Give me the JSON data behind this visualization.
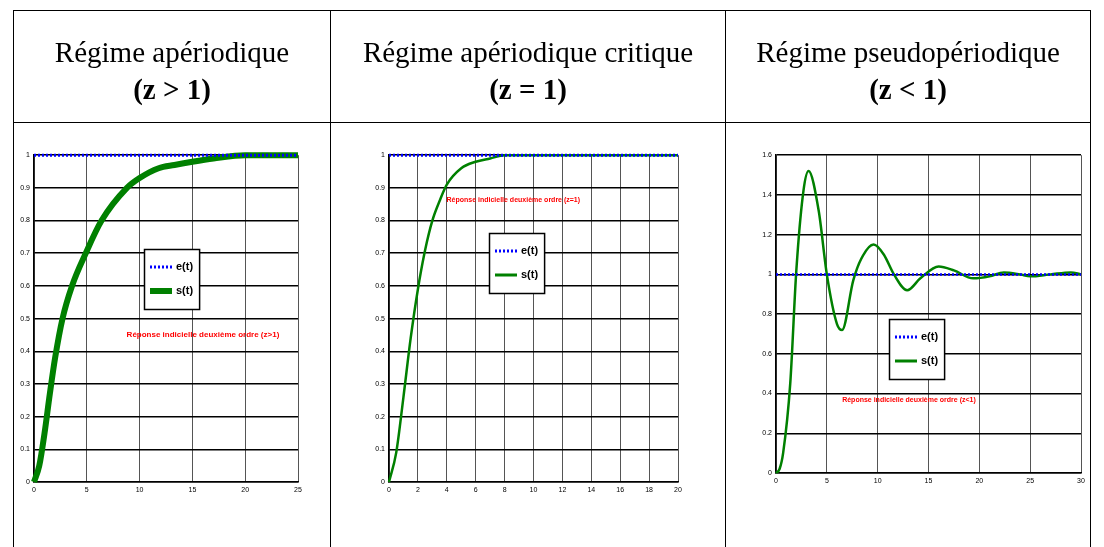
{
  "chart_data": [
    {
      "type": "line",
      "title": "Régime apériodique",
      "subtitle": "(z > 1)",
      "annotations": [
        "Réponse indicielle deuxième ordre (z>1)"
      ],
      "xlim": [
        0,
        25
      ],
      "xticks": [
        0,
        5,
        10,
        15,
        20,
        25
      ],
      "ylim": [
        0,
        1
      ],
      "yticks": [
        0,
        0.1,
        0.2,
        0.3,
        0.4,
        0.5,
        0.6,
        0.7,
        0.8,
        0.9,
        1
      ],
      "grid": true,
      "legend": "center",
      "series": [
        {
          "name": "e(t)",
          "color": "#0000ff",
          "line_style": "dotted",
          "x": [
            0,
            25
          ],
          "values": [
            1,
            1
          ]
        },
        {
          "name": "s(t)",
          "color": "#008000",
          "line_style": "solid",
          "x": [
            0,
            0.5,
            1,
            1.5,
            2,
            2.7,
            3.6,
            4.9,
            6.4,
            8.8,
            10,
            11.8,
            13.3,
            15,
            17,
            20,
            25
          ],
          "values": [
            0,
            0.05,
            0.15,
            0.27,
            0.38,
            0.5,
            0.6,
            0.7,
            0.8,
            0.9,
            0.93,
            0.96,
            0.97,
            0.98,
            0.99,
            1,
            1
          ]
        }
      ]
    },
    {
      "type": "line",
      "title": "Régime apériodique critique",
      "subtitle": "(z = 1)",
      "annotations": [
        "Réponse indicielle deuxième ordre (z=1)"
      ],
      "xlim": [
        0,
        20
      ],
      "xticks": [
        0,
        2,
        4,
        6,
        8,
        10,
        12,
        14,
        16,
        18,
        20
      ],
      "ylim": [
        0,
        1
      ],
      "yticks": [
        0,
        0.1,
        0.2,
        0.3,
        0.4,
        0.5,
        0.6,
        0.7,
        0.8,
        0.9,
        1
      ],
      "grid": true,
      "legend": "center",
      "series": [
        {
          "name": "e(t)",
          "color": "#0000ff",
          "line_style": "dotted",
          "x": [
            0,
            20
          ],
          "values": [
            1,
            1
          ]
        },
        {
          "name": "s(t)",
          "color": "#008000",
          "line_style": "solid",
          "x": [
            0,
            0.5,
            1,
            1.5,
            2,
            2.5,
            3,
            3.5,
            4,
            5,
            6,
            7,
            8,
            10,
            20
          ],
          "values": [
            0,
            0.09,
            0.26,
            0.44,
            0.59,
            0.71,
            0.8,
            0.86,
            0.91,
            0.96,
            0.98,
            0.99,
            1,
            1,
            1
          ]
        }
      ]
    },
    {
      "type": "line",
      "title": "Régime pseudopériodique",
      "subtitle": "(z < 1)",
      "annotations": [
        "Réponse indicielle deuxième ordre (z<1)"
      ],
      "xlim": [
        0,
        30
      ],
      "xticks": [
        0,
        5,
        10,
        15,
        20,
        25,
        30
      ],
      "ylim": [
        0,
        1.6
      ],
      "yticks": [
        0,
        0.2,
        0.4,
        0.6,
        0.8,
        1,
        1.2,
        1.4,
        1.6
      ],
      "grid": true,
      "legend": "center",
      "series": [
        {
          "name": "e(t)",
          "color": "#0000ff",
          "line_style": "dotted",
          "x": [
            0,
            30
          ],
          "values": [
            1,
            1
          ]
        },
        {
          "name": "s(t)",
          "color": "#008000",
          "line_style": "solid",
          "x": [
            0,
            0.35,
            0.7,
            1.4,
            2,
            2.7,
            3.2,
            4.2,
            5,
            6,
            6.5,
            7.6,
            8.4,
            9.6,
            10.6,
            11.6,
            12.9,
            14.2,
            16,
            17.5,
            19.4,
            21,
            22.4,
            24,
            25,
            27,
            29,
            30
          ],
          "values": [
            0,
            0.02,
            0.1,
            0.45,
            1.02,
            1.42,
            1.52,
            1.32,
            1,
            0.75,
            0.72,
            0.97,
            1.08,
            1.15,
            1.1,
            1,
            0.92,
            0.98,
            1.04,
            1.02,
            0.98,
            0.99,
            1.01,
            1,
            0.99,
            1,
            1.01,
            1
          ]
        }
      ]
    }
  ]
}
